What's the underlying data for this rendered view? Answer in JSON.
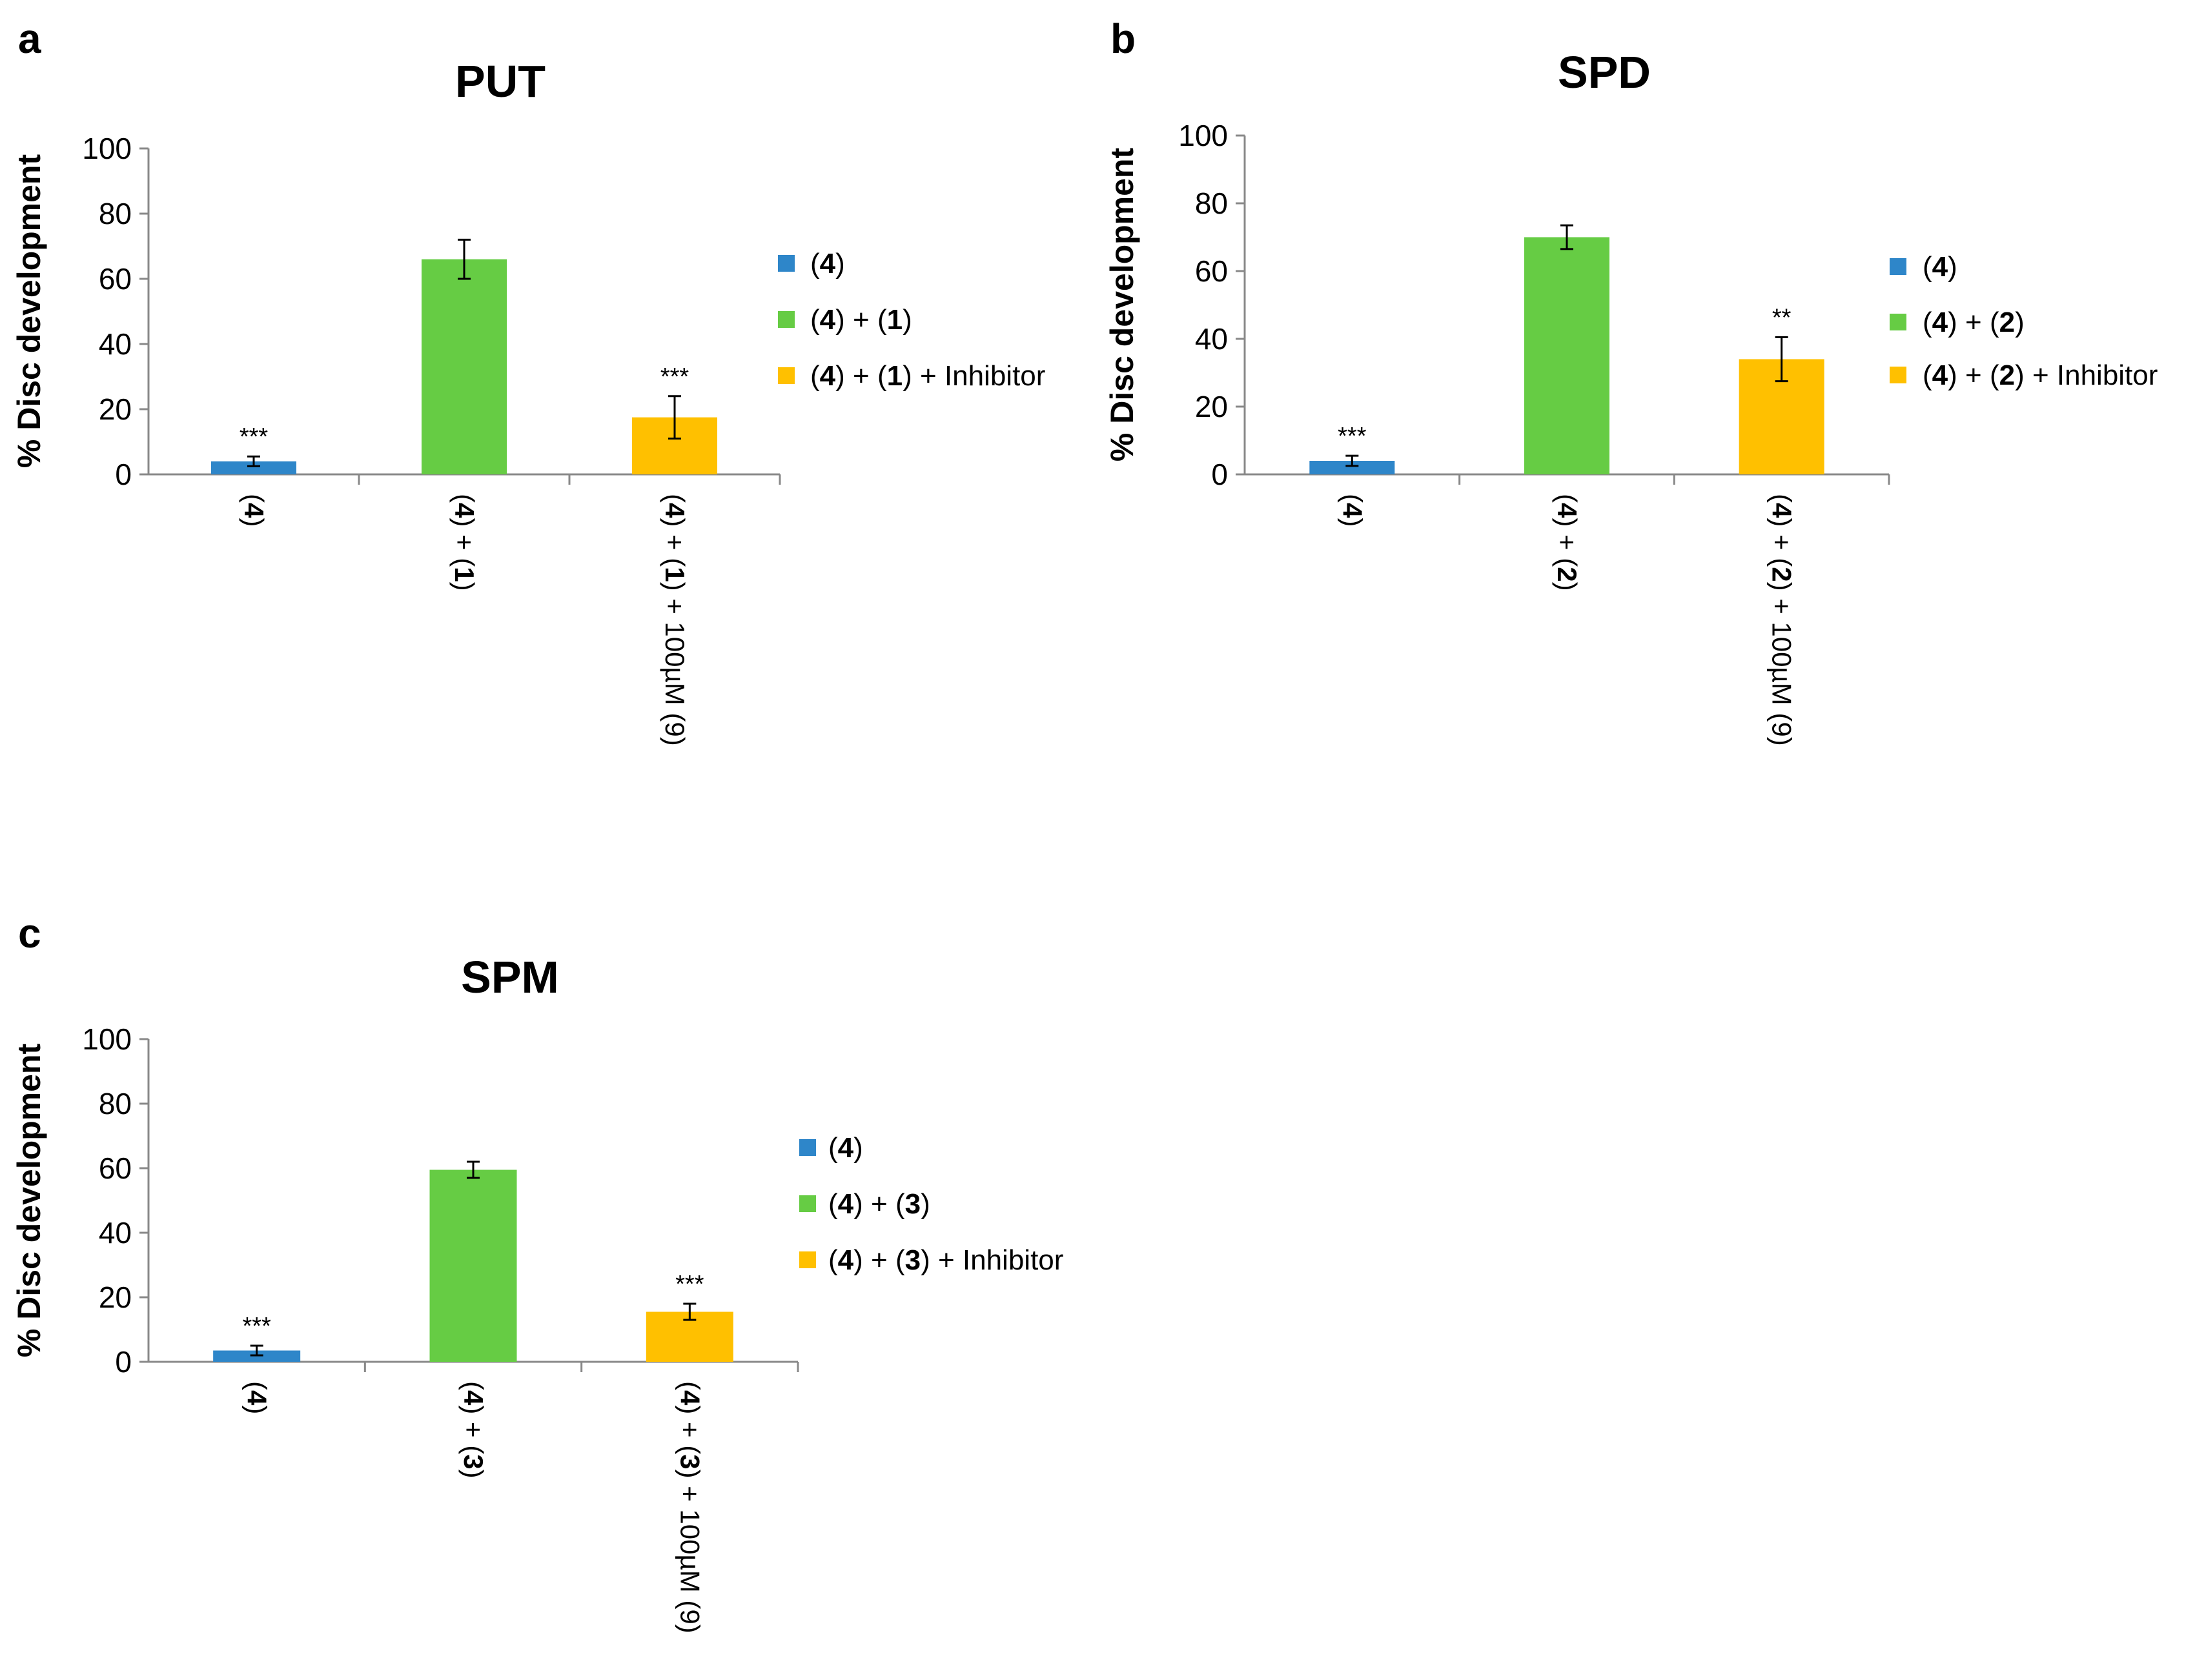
{
  "chart_data": [
    {
      "panel": "a",
      "type": "bar",
      "title": "PUT",
      "xlabel": "",
      "ylabel": "% Disc development",
      "ylim": [
        0,
        100
      ],
      "yticks": [
        "0",
        "20",
        "40",
        "60",
        "80",
        "100"
      ],
      "grid": false,
      "legend_position": "right",
      "categories": [
        [
          "(",
          "4",
          ") + (",
          "1",
          ") + 100µM (9)"
        ]
      ],
      "bars": [
        {
          "category": [
            [
              "(",
              false
            ],
            [
              "4",
              true
            ],
            [
              ")",
              false
            ]
          ],
          "legend": [
            [
              "(",
              false
            ],
            [
              "4",
              true
            ],
            [
              ")",
              false
            ]
          ],
          "value": 4,
          "error": 1.5,
          "significance": "***",
          "color": "#2e86c9"
        },
        {
          "category": [
            [
              "(",
              false
            ],
            [
              "4",
              true
            ],
            [
              ") + (",
              false
            ],
            [
              "1",
              true
            ],
            [
              ")",
              false
            ]
          ],
          "legend": [
            [
              "(",
              false
            ],
            [
              "4",
              true
            ],
            [
              ") + (",
              false
            ],
            [
              "1",
              true
            ],
            [
              ")",
              false
            ]
          ],
          "value": 66,
          "error": 6,
          "significance": "",
          "color": "#66cc44"
        },
        {
          "category": [
            [
              "(",
              false
            ],
            [
              "4",
              true
            ],
            [
              ") + (",
              false
            ],
            [
              "1",
              true
            ],
            [
              ") + 100µM (9)",
              false
            ]
          ],
          "legend": [
            [
              "(",
              false
            ],
            [
              "4",
              true
            ],
            [
              ") + (",
              false
            ],
            [
              "1",
              true
            ],
            [
              ") + Inhibitor",
              false
            ]
          ],
          "value": 17.5,
          "error": 6.5,
          "significance": "***",
          "color": "#ffc000"
        }
      ]
    },
    {
      "panel": "b",
      "type": "bar",
      "title": "SPD",
      "xlabel": "",
      "ylabel": "% Disc development",
      "ylim": [
        0,
        100
      ],
      "yticks": [
        "0",
        "20",
        "40",
        "60",
        "80",
        "100"
      ],
      "grid": false,
      "legend_position": "right",
      "bars": [
        {
          "category": [
            [
              "(",
              false
            ],
            [
              "4",
              true
            ],
            [
              ")",
              false
            ]
          ],
          "legend": [
            [
              "(",
              false
            ],
            [
              "4",
              true
            ],
            [
              ")",
              false
            ]
          ],
          "value": 4,
          "error": 1.5,
          "significance": "***",
          "color": "#2e86c9"
        },
        {
          "category": [
            [
              "(",
              false
            ],
            [
              "4",
              true
            ],
            [
              ") + (",
              false
            ],
            [
              "2",
              true
            ],
            [
              ")",
              false
            ]
          ],
          "legend": [
            [
              "(",
              false
            ],
            [
              "4",
              true
            ],
            [
              ") + (",
              false
            ],
            [
              "2",
              true
            ],
            [
              ")",
              false
            ]
          ],
          "value": 70,
          "error": 3.5,
          "significance": "",
          "color": "#66cc44"
        },
        {
          "category": [
            [
              "(",
              false
            ],
            [
              "4",
              true
            ],
            [
              ") + (",
              false
            ],
            [
              "2",
              true
            ],
            [
              ") + 100µM (9)",
              false
            ]
          ],
          "legend": [
            [
              "(",
              false
            ],
            [
              "4",
              true
            ],
            [
              ") + (",
              false
            ],
            [
              "2",
              true
            ],
            [
              ") + Inhibitor",
              false
            ]
          ],
          "value": 34,
          "error": 6.5,
          "significance": "**",
          "color": "#ffc000"
        }
      ]
    },
    {
      "panel": "c",
      "type": "bar",
      "title": "SPM",
      "xlabel": "",
      "ylabel": "% Disc development",
      "ylim": [
        0,
        100
      ],
      "yticks": [
        "0",
        "20",
        "40",
        "60",
        "80",
        "100"
      ],
      "grid": false,
      "legend_position": "right",
      "bars": [
        {
          "category": [
            [
              "(",
              false
            ],
            [
              "4",
              true
            ],
            [
              ")",
              false
            ]
          ],
          "legend": [
            [
              "(",
              false
            ],
            [
              "4",
              true
            ],
            [
              ")",
              false
            ]
          ],
          "value": 3.5,
          "error": 1.5,
          "significance": "***",
          "color": "#2e86c9"
        },
        {
          "category": [
            [
              "(",
              false
            ],
            [
              "4",
              true
            ],
            [
              ") + (",
              false
            ],
            [
              "3",
              true
            ],
            [
              ")",
              false
            ]
          ],
          "legend": [
            [
              "(",
              false
            ],
            [
              "4",
              true
            ],
            [
              ") + (",
              false
            ],
            [
              "3",
              true
            ],
            [
              ")",
              false
            ]
          ],
          "value": 59.5,
          "error": 2.5,
          "significance": "",
          "color": "#66cc44"
        },
        {
          "category": [
            [
              "(",
              false
            ],
            [
              "4",
              true
            ],
            [
              ") + (",
              false
            ],
            [
              "3",
              true
            ],
            [
              ") + 100µM (9)",
              false
            ]
          ],
          "legend": [
            [
              "(",
              false
            ],
            [
              "4",
              true
            ],
            [
              ") + (",
              false
            ],
            [
              "3",
              true
            ],
            [
              ") + Inhibitor",
              false
            ]
          ],
          "value": 15.5,
          "error": 2.5,
          "significance": "***",
          "color": "#ffc000"
        }
      ]
    }
  ]
}
